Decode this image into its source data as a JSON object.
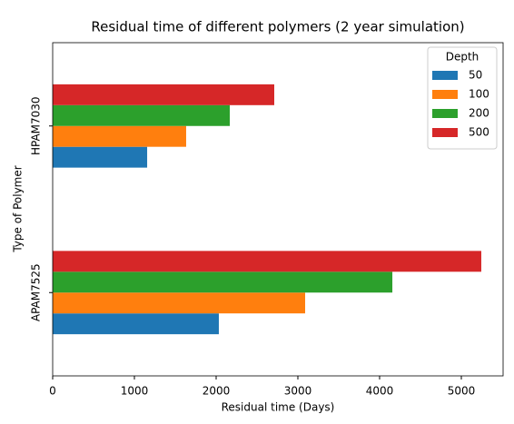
{
  "chart_data": {
    "type": "barh",
    "title": "Residual time of different polymers (2 year simulation)",
    "x_label": "Residual time (Days)",
    "y_label": "Type of Polymer",
    "categories": [
      "APAM7525",
      "HPAM7030"
    ],
    "series": [
      {
        "name": "50",
        "color": "#1f77b4",
        "values": [
          2033,
          1156
        ]
      },
      {
        "name": "100",
        "color": "#ff7f0e",
        "values": [
          3089,
          1633
        ]
      },
      {
        "name": "200",
        "color": "#2ca02c",
        "values": [
          4156,
          2167
        ]
      },
      {
        "name": "500",
        "color": "#d62728",
        "values": [
          5244,
          2711
        ]
      }
    ],
    "legend_title": "Depth",
    "legend_position": "upper right",
    "xlim": [
      0,
      5511
    ],
    "xticks": [
      0,
      1000,
      2000,
      3000,
      4000,
      5000
    ],
    "grid": false
  }
}
